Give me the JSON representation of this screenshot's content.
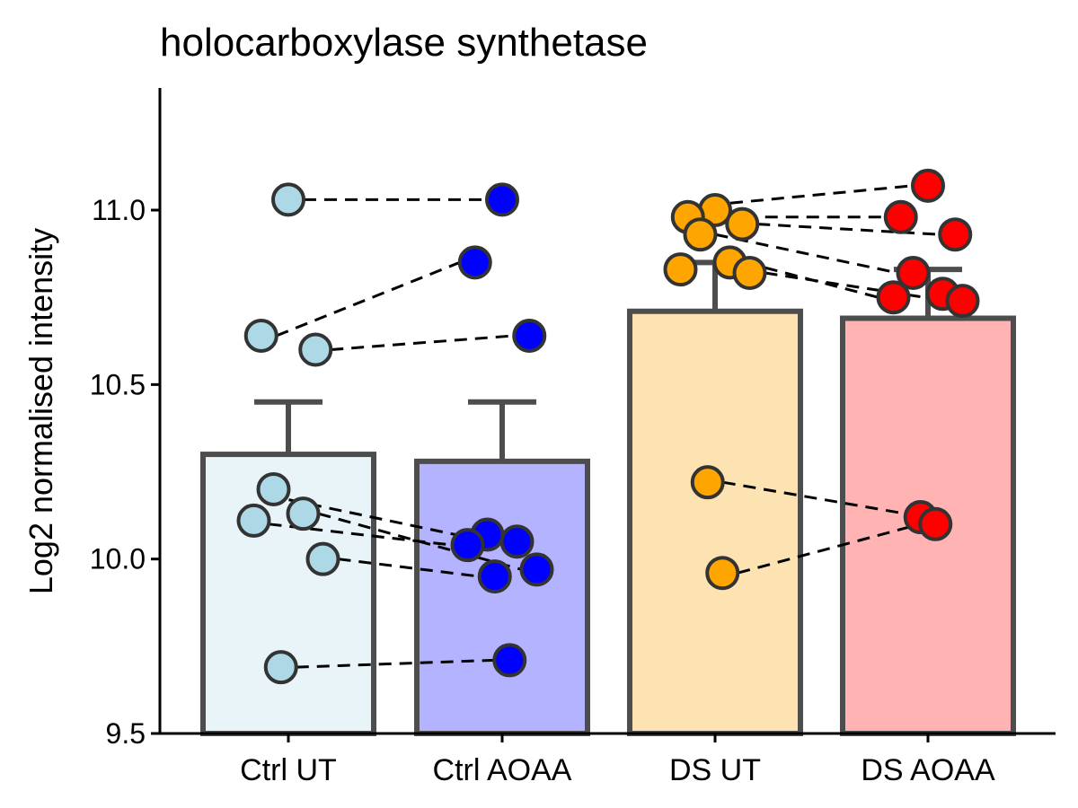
{
  "chart_data": {
    "type": "bar",
    "title": "holocarboxylase synthetase",
    "xlabel": "",
    "ylabel": "Log2 normalised intensity",
    "ylim": [
      9.5,
      11.35
    ],
    "yticks": [
      9.5,
      10.0,
      10.5,
      11.0
    ],
    "ytick_labels": [
      "9.5",
      "10.0",
      "10.5",
      "11.0"
    ],
    "grid": false,
    "legend": "none",
    "categories": [
      "Ctrl UT",
      "Ctrl AOAA",
      "DS UT",
      "DS AOAA"
    ],
    "bars": [
      {
        "category": "Ctrl UT",
        "mean": 10.3,
        "error_upper": 10.45,
        "fill": "#e8f4f8",
        "point_color": "#add8e6"
      },
      {
        "category": "Ctrl AOAA",
        "mean": 10.28,
        "error_upper": 10.45,
        "fill": "#b3b3ff",
        "point_color": "#0000ff"
      },
      {
        "category": "DS UT",
        "mean": 10.71,
        "error_upper": 10.85,
        "fill": "#fde3b2",
        "point_color": "#ffa500"
      },
      {
        "category": "DS AOAA",
        "mean": 10.69,
        "error_upper": 10.83,
        "fill": "#ffb3b3",
        "point_color": "#ff0000"
      }
    ],
    "points": [
      {
        "category": "Ctrl UT",
        "values": [
          11.03,
          10.64,
          10.6,
          10.2,
          10.13,
          10.11,
          10.0,
          9.69
        ]
      },
      {
        "category": "Ctrl AOAA",
        "values": [
          11.03,
          10.85,
          10.64,
          10.07,
          10.05,
          10.04,
          9.97,
          9.95,
          9.71
        ]
      },
      {
        "category": "DS UT",
        "values": [
          11.0,
          10.98,
          10.96,
          10.93,
          10.85,
          10.83,
          10.82,
          10.22,
          9.96
        ]
      },
      {
        "category": "DS AOAA",
        "values": [
          11.07,
          10.98,
          10.93,
          10.82,
          10.76,
          10.75,
          10.74,
          10.12,
          10.1
        ]
      }
    ],
    "pairs": [
      {
        "from": "Ctrl UT",
        "to": "Ctrl AOAA",
        "links": [
          [
            11.03,
            11.03
          ],
          [
            10.64,
            10.85
          ],
          [
            10.6,
            10.64
          ],
          [
            10.17,
            10.06
          ],
          [
            10.13,
            9.97
          ],
          [
            10.1,
            10.04
          ],
          [
            10.0,
            9.95
          ],
          [
            9.69,
            9.71
          ]
        ]
      },
      {
        "from": "DS UT",
        "to": "DS AOAA",
        "links": [
          [
            11.02,
            11.07
          ],
          [
            10.98,
            10.98
          ],
          [
            10.96,
            10.93
          ],
          [
            10.93,
            10.82
          ],
          [
            10.85,
            10.75
          ],
          [
            10.82,
            10.74
          ],
          [
            10.22,
            10.13
          ],
          [
            9.96,
            10.1
          ]
        ]
      }
    ],
    "colors": {
      "bar_stroke": "#4d4d4d",
      "point_stroke": "#333333",
      "axis": "#000000",
      "pair_line": "#000000"
    }
  }
}
